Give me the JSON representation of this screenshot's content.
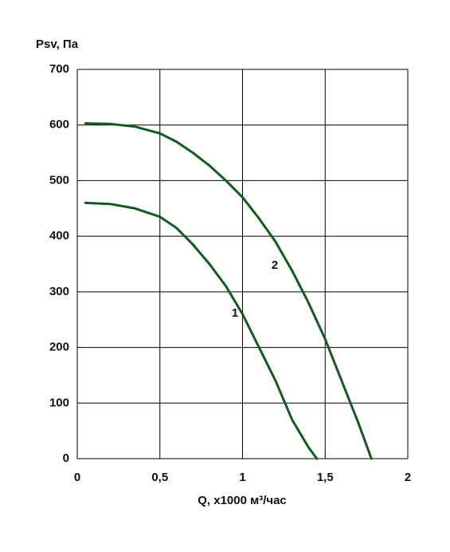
{
  "chart_data": {
    "type": "line",
    "y_label": "Psv, Па",
    "x_label": "Q, x1000 м³/час",
    "xlim": [
      0,
      2
    ],
    "ylim": [
      0,
      700
    ],
    "xticks": [
      0,
      {
        "value": 0.5,
        "label": "0,5"
      },
      1,
      {
        "value": 1.5,
        "label": "1,5"
      },
      2
    ],
    "yticks": [
      0,
      100,
      200,
      300,
      400,
      500,
      600,
      700
    ],
    "grid": true,
    "series": [
      {
        "name": "1",
        "color": "#14591e",
        "x": [
          0.05,
          0.2,
          0.35,
          0.5,
          0.6,
          0.7,
          0.8,
          0.9,
          1.0,
          1.1,
          1.2,
          1.3,
          1.4,
          1.45
        ],
        "values": [
          460,
          458,
          450,
          435,
          415,
          385,
          350,
          310,
          260,
          200,
          140,
          70,
          20,
          0
        ]
      },
      {
        "name": "2",
        "color": "#14591e",
        "x": [
          0.05,
          0.2,
          0.35,
          0.5,
          0.6,
          0.7,
          0.8,
          0.9,
          1.0,
          1.1,
          1.2,
          1.3,
          1.4,
          1.5,
          1.6,
          1.7,
          1.78
        ],
        "values": [
          603,
          602,
          597,
          585,
          570,
          550,
          527,
          500,
          470,
          432,
          390,
          338,
          280,
          215,
          140,
          65,
          0
        ]
      }
    ]
  }
}
